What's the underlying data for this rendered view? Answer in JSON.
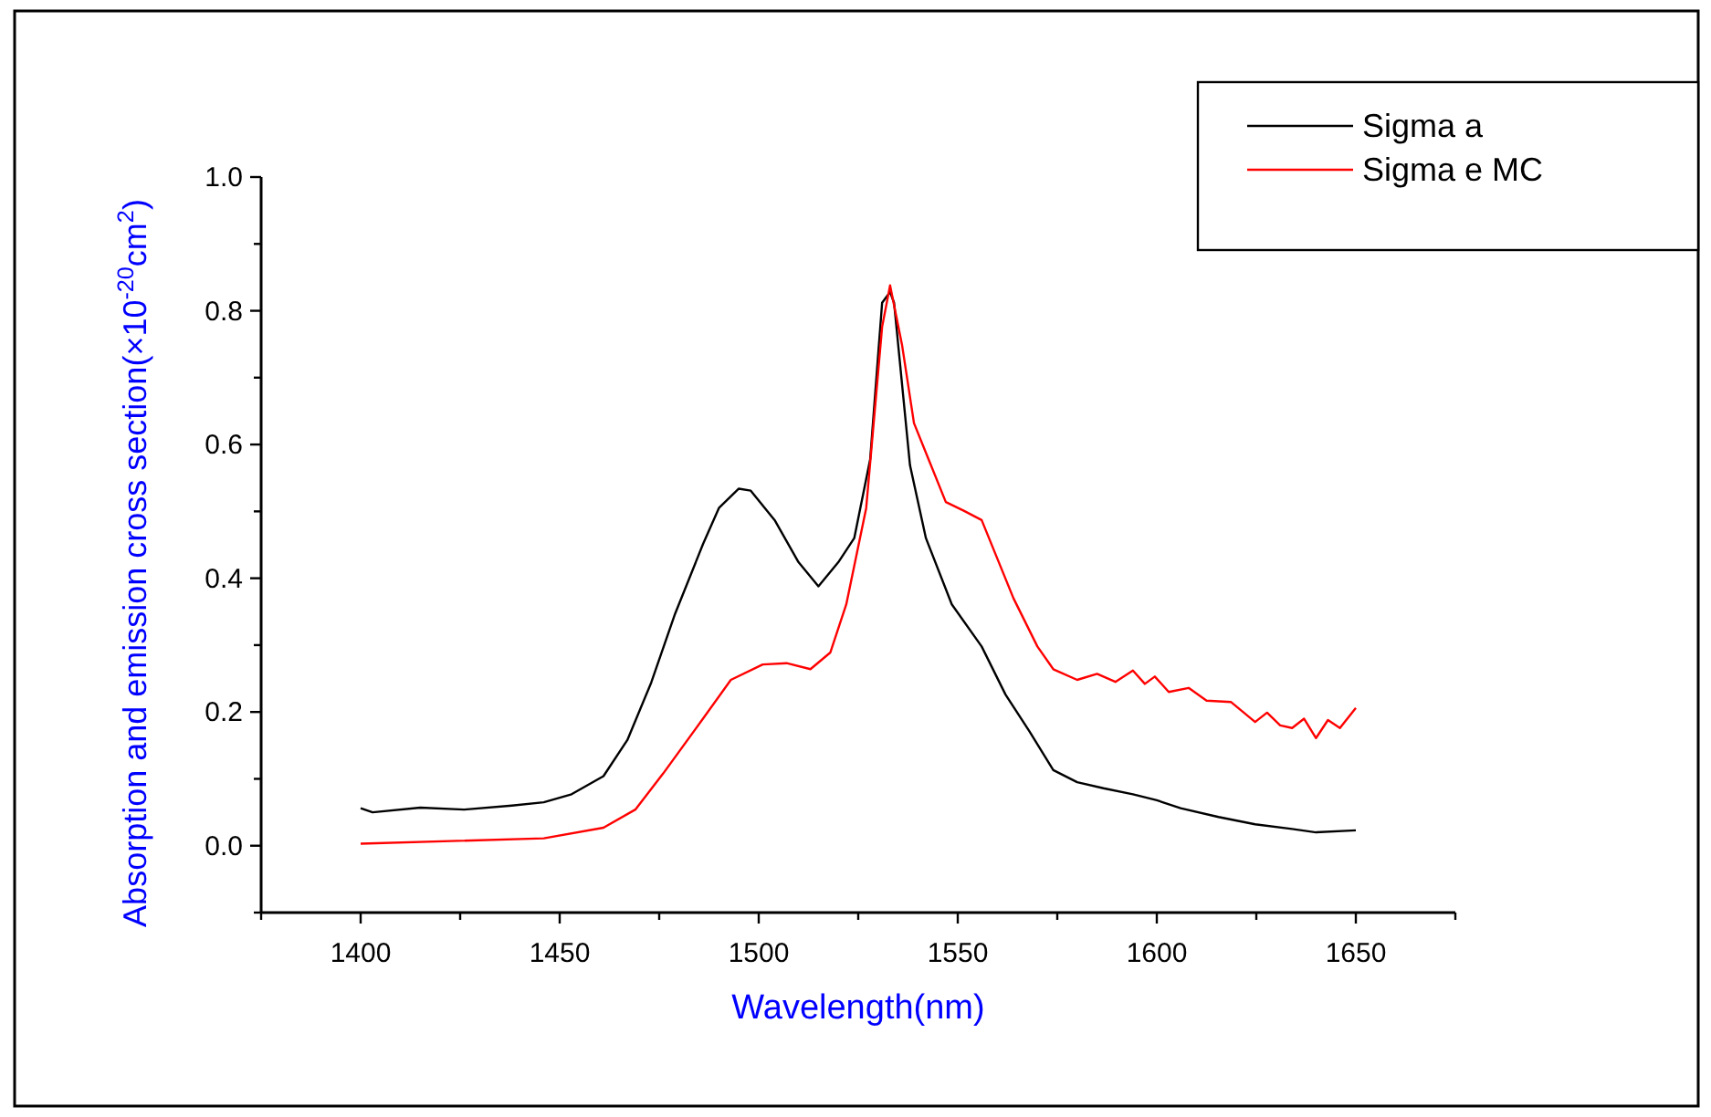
{
  "chart_data": {
    "type": "line",
    "xlabel": "Wavelength(nm)",
    "ylabel": "Absorption and emission cross section(×10$^{-20}$cm$^{2}$)",
    "xlim": [
      1375,
      1675
    ],
    "ylim": [
      -0.1,
      1.0
    ],
    "xticks": [
      {
        "value": 1375,
        "label": null
      },
      1400,
      {
        "value": 1425,
        "label": null
      },
      1450,
      {
        "value": 1475,
        "label": null
      },
      1500,
      {
        "value": 1525,
        "label": null
      },
      1550,
      {
        "value": 1575,
        "label": null
      },
      1600,
      {
        "value": 1625,
        "label": null
      },
      1650,
      {
        "value": 1675,
        "label": null
      }
    ],
    "yticks": [
      {
        "value": -0.1,
        "label": null
      },
      {
        "value": 0,
        "label": "0.0"
      },
      {
        "value": 0.1,
        "label": null
      },
      0.2,
      {
        "value": 0.3,
        "label": null
      },
      0.4,
      {
        "value": 0.5,
        "label": null
      },
      0.6,
      {
        "value": 0.7,
        "label": null
      },
      0.8,
      {
        "value": 0.9,
        "label": null
      },
      {
        "value": 1,
        "label": "1.0"
      }
    ],
    "grid": false,
    "legend": "top right",
    "marker": "none",
    "line_style": "solid",
    "series": [
      {
        "name": "Sigma a",
        "color": "#000000",
        "x": [
          1400,
          1403,
          1415,
          1426,
          1438,
          1446,
          1453,
          1461,
          1467,
          1473,
          1479,
          1486,
          1490,
          1495,
          1498,
          1504,
          1510,
          1515,
          1520,
          1524,
          1528,
          1531,
          1533,
          1534,
          1538,
          1542,
          1548.5,
          1556,
          1562,
          1568,
          1574,
          1580,
          1586.6,
          1594,
          1600,
          1606,
          1615.5,
          1624.7,
          1634,
          1640,
          1650
        ],
        "values": [
          0.056,
          0.05,
          0.057,
          0.054,
          0.06,
          0.065,
          0.077,
          0.104,
          0.158,
          0.244,
          0.347,
          0.451,
          0.505,
          0.534,
          0.531,
          0.487,
          0.424,
          0.388,
          0.424,
          0.46,
          0.578,
          0.812,
          0.828,
          0.812,
          0.569,
          0.46,
          0.361,
          0.298,
          0.226,
          0.171,
          0.113,
          0.095,
          0.086,
          0.077,
          0.068,
          0.056,
          0.043,
          0.032,
          0.025,
          0.02,
          0.023
        ]
      },
      {
        "name": "Sigma e MC",
        "color": "#ff0000",
        "x": [
          1400,
          1446,
          1461,
          1469,
          1476,
          1486,
          1493,
          1501,
          1507,
          1513,
          1518,
          1522,
          1527,
          1531,
          1533,
          1536,
          1539,
          1547,
          1551.5,
          1556,
          1564,
          1570,
          1574,
          1580,
          1585,
          1589.6,
          1594,
          1597,
          1599.5,
          1603,
          1608,
          1612.5,
          1618.6,
          1624.7,
          1627.7,
          1631,
          1634,
          1637,
          1640,
          1643,
          1646,
          1650
        ],
        "values": [
          0.003,
          0.011,
          0.027,
          0.054,
          0.108,
          0.19,
          0.248,
          0.271,
          0.273,
          0.264,
          0.289,
          0.361,
          0.505,
          0.776,
          0.838,
          0.749,
          0.632,
          0.514,
          0.501,
          0.487,
          0.37,
          0.298,
          0.264,
          0.248,
          0.257,
          0.245,
          0.262,
          0.242,
          0.253,
          0.23,
          0.236,
          0.217,
          0.215,
          0.185,
          0.199,
          0.18,
          0.176,
          0.19,
          0.161,
          0.188,
          0.176,
          0.206
        ]
      }
    ]
  }
}
